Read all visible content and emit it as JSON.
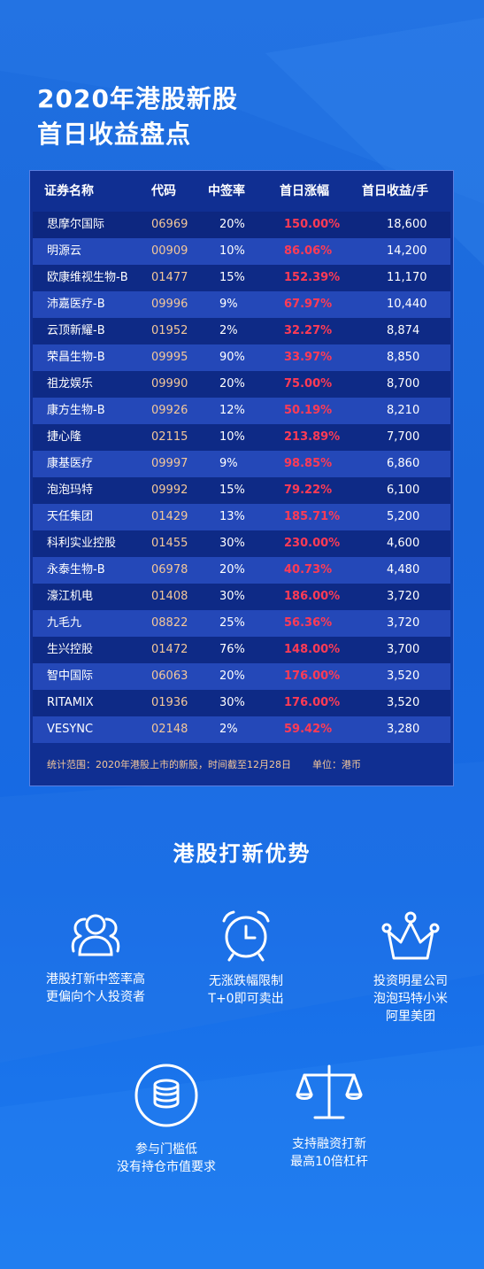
{
  "title": {
    "line1": "2020年港股新股",
    "line2": "首日收益盘点"
  },
  "table": {
    "headers": {
      "name": "证券名称",
      "code": "代码",
      "rate": "中签率",
      "gain": "首日涨幅",
      "profit": "首日收益/手"
    },
    "rows": [
      {
        "name": "思摩尔国际",
        "code": "06969",
        "rate": "20%",
        "gain": "150.00%",
        "profit": "18,600"
      },
      {
        "name": "明源云",
        "code": "00909",
        "rate": "10%",
        "gain": "86.06%",
        "profit": "14,200"
      },
      {
        "name": "欧康维视生物-B",
        "code": "01477",
        "rate": "15%",
        "gain": "152.39%",
        "profit": "11,170"
      },
      {
        "name": "沛嘉医疗-B",
        "code": "09996",
        "rate": "9%",
        "gain": "67.97%",
        "profit": "10,440"
      },
      {
        "name": "云顶新耀-B",
        "code": "01952",
        "rate": "2%",
        "gain": "32.27%",
        "profit": "8,874"
      },
      {
        "name": "荣昌生物-B",
        "code": "09995",
        "rate": "90%",
        "gain": "33.97%",
        "profit": "8,850"
      },
      {
        "name": "祖龙娱乐",
        "code": "09990",
        "rate": "20%",
        "gain": "75.00%",
        "profit": "8,700"
      },
      {
        "name": "康方生物-B",
        "code": "09926",
        "rate": "12%",
        "gain": "50.19%",
        "profit": "8,210"
      },
      {
        "name": "捷心隆",
        "code": "02115",
        "rate": "10%",
        "gain": "213.89%",
        "profit": "7,700"
      },
      {
        "name": "康基医疗",
        "code": "09997",
        "rate": "9%",
        "gain": "98.85%",
        "profit": "6,860"
      },
      {
        "name": "泡泡玛特",
        "code": "09992",
        "rate": "15%",
        "gain": "79.22%",
        "profit": "6,100"
      },
      {
        "name": "天任集团",
        "code": "01429",
        "rate": "13%",
        "gain": "185.71%",
        "profit": "5,200"
      },
      {
        "name": "科利实业控股",
        "code": "01455",
        "rate": "30%",
        "gain": "230.00%",
        "profit": "4,600"
      },
      {
        "name": "永泰生物-B",
        "code": "06978",
        "rate": "20%",
        "gain": "40.73%",
        "profit": "4,480"
      },
      {
        "name": "濠江机电",
        "code": "01408",
        "rate": "30%",
        "gain": "186.00%",
        "profit": "3,720"
      },
      {
        "name": "九毛九",
        "code": "08822",
        "rate": "25%",
        "gain": "56.36%",
        "profit": "3,720"
      },
      {
        "name": "生兴控股",
        "code": "01472",
        "rate": "76%",
        "gain": "148.00%",
        "profit": "3,700"
      },
      {
        "name": "智中国际",
        "code": "06063",
        "rate": "20%",
        "gain": "176.00%",
        "profit": "3,520"
      },
      {
        "name": "RITAMIX",
        "code": "01936",
        "rate": "30%",
        "gain": "176.00%",
        "profit": "3,520"
      },
      {
        "name": "VESYNC",
        "code": "02148",
        "rate": "2%",
        "gain": "59.42%",
        "profit": "3,280"
      }
    ],
    "note": "统计范围：2020年港股上市的新股，时间截至12月28日",
    "unit": "单位：港币"
  },
  "advantages": {
    "title": "港股打新优势",
    "items": [
      {
        "icon": "people-icon",
        "line1": "港股打新中签率高",
        "line2": "更偏向个人投资者"
      },
      {
        "icon": "alarm-clock-icon",
        "line1": "无涨跌幅限制",
        "line2": "T+0即可卖出"
      },
      {
        "icon": "crown-icon",
        "line1": "投资明星公司",
        "line2": "泡泡玛特小米",
        "line3": "阿里美团"
      },
      {
        "icon": "coins-icon",
        "line1": "参与门槛低",
        "line2": "没有持仓市值要求"
      },
      {
        "icon": "scale-icon",
        "line1": "支持融资打新",
        "line2": "最高10倍杠杆"
      }
    ]
  },
  "colors": {
    "gain": "#ff3b55",
    "code": "#f3c79a",
    "panel": "#102f92",
    "background": "#1f6fe0"
  }
}
